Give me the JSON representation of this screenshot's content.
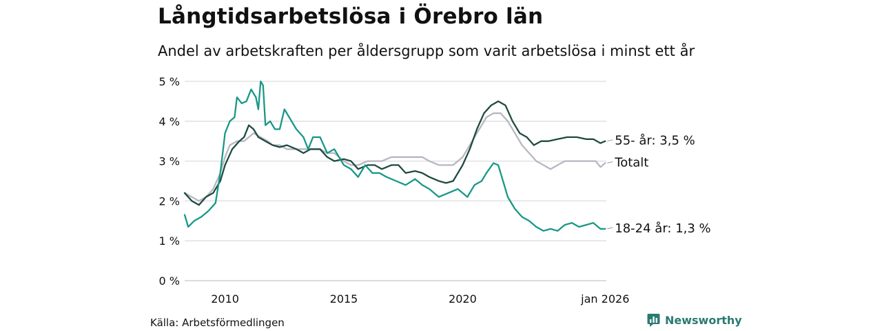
{
  "chart_data": {
    "type": "line",
    "title": "Långtidsarbetslösa i Örebro län",
    "subtitle": "Andel av arbetskraften per åldersgrupp som varit arbetslösa i minst ett år",
    "xlabel": "",
    "ylabel": "",
    "x_range": [
      2008.3,
      2026.05
    ],
    "ylim": [
      0,
      5
    ],
    "y_ticks": [
      {
        "value": 0,
        "label": "0 %"
      },
      {
        "value": 1,
        "label": "1 %"
      },
      {
        "value": 2,
        "label": "2 %"
      },
      {
        "value": 3,
        "label": "3 %"
      },
      {
        "value": 4,
        "label": "4 %"
      },
      {
        "value": 5,
        "label": "5 %"
      }
    ],
    "x_ticks": [
      {
        "value": 2010,
        "label": "2010"
      },
      {
        "value": 2015,
        "label": "2015"
      },
      {
        "value": 2020,
        "label": "2020"
      },
      {
        "value": 2026,
        "label": "jan 2026"
      }
    ],
    "grid": true,
    "series": [
      {
        "name": "Totalt",
        "end_label": "Totalt",
        "color": "#b9b6c2",
        "points": [
          [
            2008.3,
            2.2
          ],
          [
            2008.6,
            2.1
          ],
          [
            2008.9,
            2.0
          ],
          [
            2009.2,
            2.1
          ],
          [
            2009.5,
            2.3
          ],
          [
            2009.8,
            2.7
          ],
          [
            2010.0,
            3.1
          ],
          [
            2010.2,
            3.4
          ],
          [
            2010.5,
            3.5
          ],
          [
            2010.8,
            3.5
          ],
          [
            2011.0,
            3.6
          ],
          [
            2011.2,
            3.7
          ],
          [
            2011.5,
            3.6
          ],
          [
            2011.8,
            3.5
          ],
          [
            2012.0,
            3.4
          ],
          [
            2012.3,
            3.4
          ],
          [
            2012.6,
            3.3
          ],
          [
            2013.0,
            3.3
          ],
          [
            2013.3,
            3.3
          ],
          [
            2013.6,
            3.3
          ],
          [
            2014.0,
            3.3
          ],
          [
            2014.3,
            3.2
          ],
          [
            2014.6,
            3.2
          ],
          [
            2015.0,
            3.0
          ],
          [
            2015.3,
            2.9
          ],
          [
            2015.6,
            2.9
          ],
          [
            2016.0,
            3.0
          ],
          [
            2016.3,
            3.0
          ],
          [
            2016.6,
            3.0
          ],
          [
            2017.0,
            3.1
          ],
          [
            2017.3,
            3.1
          ],
          [
            2017.6,
            3.1
          ],
          [
            2018.0,
            3.1
          ],
          [
            2018.3,
            3.1
          ],
          [
            2018.6,
            3.0
          ],
          [
            2019.0,
            2.9
          ],
          [
            2019.3,
            2.9
          ],
          [
            2019.6,
            2.9
          ],
          [
            2020.0,
            3.1
          ],
          [
            2020.2,
            3.3
          ],
          [
            2020.5,
            3.6
          ],
          [
            2020.8,
            3.9
          ],
          [
            2021.0,
            4.1
          ],
          [
            2021.3,
            4.2
          ],
          [
            2021.6,
            4.2
          ],
          [
            2021.9,
            4.0
          ],
          [
            2022.2,
            3.7
          ],
          [
            2022.5,
            3.4
          ],
          [
            2022.8,
            3.2
          ],
          [
            2023.1,
            3.0
          ],
          [
            2023.4,
            2.9
          ],
          [
            2023.7,
            2.8
          ],
          [
            2024.0,
            2.9
          ],
          [
            2024.3,
            3.0
          ],
          [
            2024.6,
            3.0
          ],
          [
            2025.0,
            3.0
          ],
          [
            2025.3,
            3.0
          ],
          [
            2025.6,
            3.0
          ],
          [
            2025.8,
            2.85
          ],
          [
            2026.0,
            2.95
          ]
        ]
      },
      {
        "name": "55- år",
        "end_label": "55- år: 3,5 %",
        "color": "#1e4a40",
        "points": [
          [
            2008.3,
            2.2
          ],
          [
            2008.6,
            2.0
          ],
          [
            2008.9,
            1.9
          ],
          [
            2009.2,
            2.1
          ],
          [
            2009.5,
            2.2
          ],
          [
            2009.8,
            2.5
          ],
          [
            2010.0,
            2.9
          ],
          [
            2010.3,
            3.3
          ],
          [
            2010.6,
            3.5
          ],
          [
            2010.8,
            3.6
          ],
          [
            2011.0,
            3.9
          ],
          [
            2011.2,
            3.8
          ],
          [
            2011.4,
            3.6
          ],
          [
            2011.7,
            3.5
          ],
          [
            2012.0,
            3.4
          ],
          [
            2012.3,
            3.35
          ],
          [
            2012.6,
            3.4
          ],
          [
            2013.0,
            3.3
          ],
          [
            2013.3,
            3.2
          ],
          [
            2013.6,
            3.3
          ],
          [
            2014.0,
            3.3
          ],
          [
            2014.3,
            3.1
          ],
          [
            2014.6,
            3.0
          ],
          [
            2015.0,
            3.05
          ],
          [
            2015.3,
            3.0
          ],
          [
            2015.6,
            2.8
          ],
          [
            2016.0,
            2.9
          ],
          [
            2016.3,
            2.9
          ],
          [
            2016.6,
            2.8
          ],
          [
            2017.0,
            2.9
          ],
          [
            2017.3,
            2.9
          ],
          [
            2017.6,
            2.7
          ],
          [
            2018.0,
            2.75
          ],
          [
            2018.3,
            2.7
          ],
          [
            2018.6,
            2.6
          ],
          [
            2019.0,
            2.5
          ],
          [
            2019.3,
            2.45
          ],
          [
            2019.6,
            2.5
          ],
          [
            2020.0,
            2.9
          ],
          [
            2020.3,
            3.3
          ],
          [
            2020.6,
            3.8
          ],
          [
            2020.9,
            4.2
          ],
          [
            2021.2,
            4.4
          ],
          [
            2021.5,
            4.5
          ],
          [
            2021.8,
            4.4
          ],
          [
            2022.1,
            4.0
          ],
          [
            2022.4,
            3.7
          ],
          [
            2022.7,
            3.6
          ],
          [
            2023.0,
            3.4
          ],
          [
            2023.3,
            3.5
          ],
          [
            2023.6,
            3.5
          ],
          [
            2024.0,
            3.55
          ],
          [
            2024.4,
            3.6
          ],
          [
            2024.8,
            3.6
          ],
          [
            2025.2,
            3.55
          ],
          [
            2025.5,
            3.55
          ],
          [
            2025.8,
            3.45
          ],
          [
            2026.0,
            3.5
          ]
        ]
      },
      {
        "name": "18-24 år",
        "end_label": "18-24 år: 1,3 %",
        "color": "#179787",
        "points": [
          [
            2008.3,
            1.65
          ],
          [
            2008.45,
            1.35
          ],
          [
            2008.7,
            1.5
          ],
          [
            2009.0,
            1.6
          ],
          [
            2009.3,
            1.75
          ],
          [
            2009.6,
            1.95
          ],
          [
            2009.8,
            2.7
          ],
          [
            2010.0,
            3.7
          ],
          [
            2010.2,
            4.0
          ],
          [
            2010.4,
            4.1
          ],
          [
            2010.5,
            4.6
          ],
          [
            2010.7,
            4.45
          ],
          [
            2010.9,
            4.5
          ],
          [
            2011.1,
            4.8
          ],
          [
            2011.3,
            4.6
          ],
          [
            2011.4,
            4.3
          ],
          [
            2011.5,
            5.0
          ],
          [
            2011.6,
            4.9
          ],
          [
            2011.7,
            3.9
          ],
          [
            2011.9,
            4.0
          ],
          [
            2012.1,
            3.8
          ],
          [
            2012.3,
            3.8
          ],
          [
            2012.5,
            4.3
          ],
          [
            2012.7,
            4.1
          ],
          [
            2013.0,
            3.8
          ],
          [
            2013.3,
            3.6
          ],
          [
            2013.5,
            3.3
          ],
          [
            2013.7,
            3.6
          ],
          [
            2014.0,
            3.6
          ],
          [
            2014.3,
            3.2
          ],
          [
            2014.6,
            3.3
          ],
          [
            2015.0,
            2.9
          ],
          [
            2015.3,
            2.8
          ],
          [
            2015.6,
            2.6
          ],
          [
            2015.9,
            2.9
          ],
          [
            2016.2,
            2.7
          ],
          [
            2016.5,
            2.7
          ],
          [
            2016.8,
            2.6
          ],
          [
            2017.2,
            2.5
          ],
          [
            2017.6,
            2.4
          ],
          [
            2018.0,
            2.55
          ],
          [
            2018.3,
            2.4
          ],
          [
            2018.6,
            2.3
          ],
          [
            2019.0,
            2.1
          ],
          [
            2019.4,
            2.2
          ],
          [
            2019.8,
            2.3
          ],
          [
            2020.2,
            2.1
          ],
          [
            2020.5,
            2.4
          ],
          [
            2020.8,
            2.5
          ],
          [
            2021.0,
            2.7
          ],
          [
            2021.3,
            2.95
          ],
          [
            2021.5,
            2.9
          ],
          [
            2021.7,
            2.5
          ],
          [
            2021.9,
            2.1
          ],
          [
            2022.2,
            1.8
          ],
          [
            2022.5,
            1.6
          ],
          [
            2022.8,
            1.5
          ],
          [
            2023.1,
            1.35
          ],
          [
            2023.4,
            1.25
          ],
          [
            2023.7,
            1.3
          ],
          [
            2024.0,
            1.25
          ],
          [
            2024.3,
            1.4
          ],
          [
            2024.6,
            1.45
          ],
          [
            2024.9,
            1.35
          ],
          [
            2025.2,
            1.4
          ],
          [
            2025.5,
            1.45
          ],
          [
            2025.8,
            1.3
          ],
          [
            2026.0,
            1.3
          ]
        ]
      }
    ],
    "source": "Källa: Arbetsförmedlingen",
    "brand": "Newsworthy"
  }
}
